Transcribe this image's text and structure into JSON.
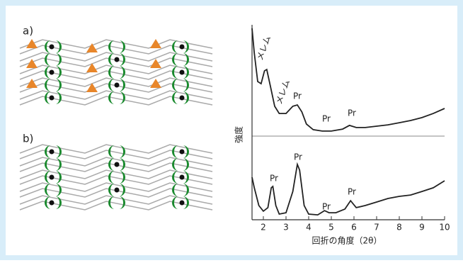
{
  "panel_labels": [
    "a)",
    "b)"
  ],
  "chart_data": {
    "type": "line",
    "x_label": "回折の角度（2θ）",
    "y_label": "強度",
    "xlim": [
      1.5,
      10
    ],
    "xticks": [
      2,
      3,
      4,
      5,
      6,
      7,
      8,
      9,
      10
    ],
    "ylim": [
      0,
      100
    ],
    "series": [
      {
        "color": "#222222",
        "x": [
          1.5,
          1.6,
          1.75,
          1.9,
          2.05,
          2.15,
          2.3,
          2.5,
          2.7,
          3.0,
          3.3,
          3.5,
          3.7,
          3.9,
          4.2,
          4.6,
          5.0,
          5.5,
          5.8,
          6.1,
          6.5,
          7,
          7.5,
          8,
          8.5,
          9,
          9.5,
          10
        ],
        "values": [
          98.2,
          85.5,
          70.9,
          69.8,
          76.4,
          77.1,
          69.1,
          58.2,
          54.5,
          54.5,
          58.2,
          58.9,
          55.3,
          49.1,
          46.2,
          45.5,
          45.5,
          46.5,
          48.4,
          47.3,
          47.3,
          48,
          48.7,
          49.8,
          50.9,
          52.4,
          54.5,
          57.1
        ]
      },
      {
        "color": "#222222",
        "x": [
          1.5,
          1.6,
          1.8,
          2.0,
          2.2,
          2.35,
          2.42,
          2.55,
          2.7,
          3.0,
          3.3,
          3.5,
          3.6,
          3.8,
          4.0,
          4.4,
          4.7,
          4.9,
          5.2,
          5.6,
          5.85,
          6.1,
          6.5,
          7,
          7.5,
          8,
          8.5,
          9,
          9.5,
          10
        ],
        "values": [
          21.8,
          16.4,
          7.3,
          4.4,
          6.2,
          16.4,
          17.1,
          7.3,
          2.9,
          3.6,
          14.5,
          28.4,
          25.5,
          7.3,
          2.9,
          2.5,
          4.7,
          3.6,
          3.6,
          5.5,
          9.8,
          6.2,
          7.3,
          9.1,
          10.9,
          12,
          12.7,
          14.5,
          16.4,
          20
        ]
      }
    ],
    "annotations": [
      "メレム",
      "メレム",
      "Pr",
      "Pr",
      "Pr",
      "Pr",
      "Pr",
      "Pr",
      "Pr"
    ]
  }
}
